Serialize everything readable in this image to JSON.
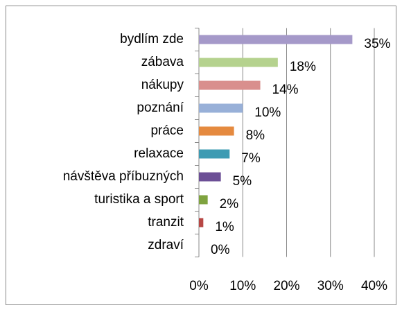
{
  "chart_data": {
    "type": "bar",
    "orientation": "horizontal",
    "categories": [
      "bydlím zde",
      "zábava",
      "nákupy",
      "poznání",
      "práce",
      "relaxace",
      "návštěva příbuzných",
      "turistika a sport",
      "tranzit",
      "zdraví"
    ],
    "values": [
      35,
      18,
      14,
      10,
      8,
      7,
      5,
      2,
      1,
      0
    ],
    "value_labels": [
      "35%",
      "18%",
      "14%",
      "10%",
      "8%",
      "7%",
      "5%",
      "2%",
      "1%",
      "0%"
    ],
    "colors": [
      "#a599c9",
      "#b5d28e",
      "#d98f8d",
      "#98b0d8",
      "#e58a3f",
      "#3d9bb3",
      "#6c4f96",
      "#7fa33f",
      "#b74744",
      "#888888"
    ],
    "xlim": [
      0,
      40
    ],
    "xticks": [
      {
        "value": 0,
        "label": "0%"
      },
      {
        "value": 10,
        "label": "10%"
      },
      {
        "value": 20,
        "label": "20%"
      },
      {
        "value": 30,
        "label": "30%"
      },
      {
        "value": 40,
        "label": "40%"
      }
    ],
    "grid": true
  }
}
